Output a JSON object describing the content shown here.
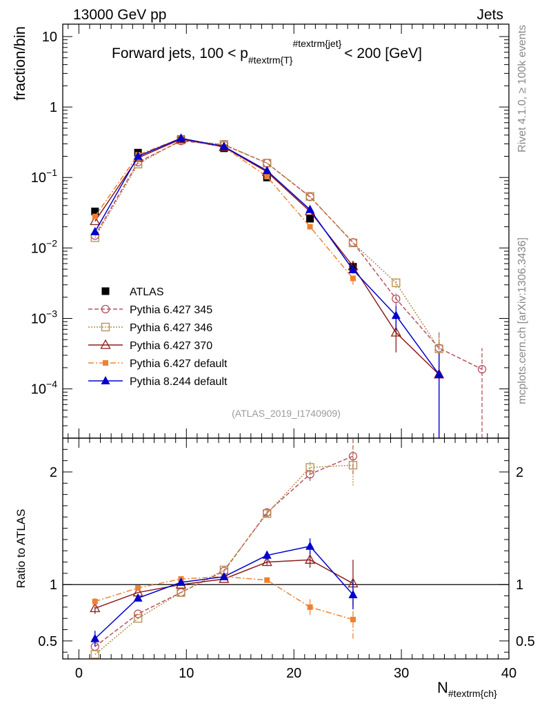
{
  "header": {
    "energy": "13000 GeV pp",
    "topic": "Jets"
  },
  "labels": {
    "main_ylabel": "fraction/bin",
    "ratio_ylabel": "Ratio to ATLAS",
    "xlabel": "N",
    "xlabel_sub": "#textrm{ch}",
    "title_pre": "Forward jets, 100 < p",
    "title_sub": "#textrm{T}",
    "title_sup": "#textrm{jet}",
    "title_post": "< 200 [GeV]",
    "side_rivet": "Rivet 4.1.0, ≥ 100k events",
    "side_mcplots": "mcplots.cern.ch [arXiv:1306.3436]",
    "watermark": "(ATLAS_2019_I1740909)"
  },
  "chart_data": {
    "type": "line",
    "xlim": [
      -1.5,
      40
    ],
    "main": {
      "yscale": "log",
      "ylim": [
        2e-05,
        15
      ],
      "yticks": [
        {
          "v": 10,
          "base": "10",
          "exp": ""
        },
        {
          "v": 1,
          "base": "1",
          "exp": ""
        },
        {
          "v": 0.1,
          "base": "10",
          "exp": "−1"
        },
        {
          "v": 0.01,
          "base": "10",
          "exp": "−2"
        },
        {
          "v": 0.001,
          "base": "10",
          "exp": "−3"
        },
        {
          "v": 0.0001,
          "base": "10",
          "exp": "−4"
        }
      ]
    },
    "ratio": {
      "yscale": "linear",
      "ylim": [
        0.34,
        2.3
      ],
      "yticks": [
        0.5,
        1,
        2
      ],
      "reference_line": 1
    },
    "xticks": [
      0,
      10,
      20,
      30,
      40
    ],
    "legend_position": "left-lower",
    "series": [
      {
        "name": "ATLAS",
        "color": "#000000",
        "marker": "square-filled",
        "dash": "",
        "points": [
          [
            1.5,
            0.033
          ],
          [
            5.5,
            0.225
          ],
          [
            9.5,
            0.35
          ],
          [
            13.5,
            0.26
          ],
          [
            17.5,
            0.1
          ],
          [
            21.5,
            0.026
          ],
          [
            25.5,
            0.0054
          ]
        ],
        "yerr": [
          0,
          0,
          0,
          0,
          0,
          0,
          0.0005
        ],
        "ratio": [],
        "rerr": []
      },
      {
        "name": "Pythia 6.427 345",
        "color": "#b5505e",
        "marker": "circle-open",
        "dash": "6,3",
        "points": [
          [
            1.5,
            0.015
          ],
          [
            5.5,
            0.165
          ],
          [
            9.5,
            0.33
          ],
          [
            13.5,
            0.29
          ],
          [
            17.5,
            0.16
          ],
          [
            21.5,
            0.053
          ],
          [
            25.5,
            0.012
          ],
          [
            29.5,
            0.0019
          ],
          [
            33.5,
            0.00038
          ],
          [
            37.5,
            0.00019
          ]
        ],
        "yerr": [
          0,
          0,
          0,
          0,
          0,
          0,
          0,
          0.0004,
          0.00025,
          0.00019
        ],
        "ratio": [
          [
            1.5,
            0.45
          ],
          [
            5.5,
            0.74
          ],
          [
            9.5,
            0.93
          ],
          [
            13.5,
            1.12
          ],
          [
            17.5,
            1.64
          ],
          [
            21.5,
            1.98
          ],
          [
            25.5,
            2.14
          ]
        ],
        "rerr": [
          0,
          0,
          0,
          0,
          0.03,
          0.06,
          0.16
        ]
      },
      {
        "name": "Pythia 6.427 346",
        "color": "#b8894a",
        "marker": "square-open",
        "dash": "2,2",
        "points": [
          [
            1.5,
            0.014
          ],
          [
            5.5,
            0.155
          ],
          [
            9.5,
            0.34
          ],
          [
            13.5,
            0.295
          ],
          [
            17.5,
            0.16
          ],
          [
            21.5,
            0.054
          ],
          [
            25.5,
            0.0118
          ],
          [
            29.5,
            0.0032
          ],
          [
            33.5,
            0.00037
          ]
        ],
        "yerr": [
          0,
          0,
          0,
          0,
          0,
          0,
          0,
          0.0005,
          0.0003
        ],
        "ratio": [
          [
            1.5,
            0.38
          ],
          [
            5.5,
            0.7
          ],
          [
            9.5,
            0.93
          ],
          [
            13.5,
            1.13
          ],
          [
            17.5,
            1.63
          ],
          [
            21.5,
            2.04
          ],
          [
            25.5,
            2.06
          ]
        ],
        "rerr": [
          0,
          0,
          0,
          0,
          0.03,
          0.06,
          0.18
        ]
      },
      {
        "name": "Pythia 6.427 370",
        "color": "#8b1a1a",
        "marker": "triangle-open",
        "dash": "",
        "points": [
          [
            1.5,
            0.024
          ],
          [
            5.5,
            0.19
          ],
          [
            9.5,
            0.35
          ],
          [
            13.5,
            0.27
          ],
          [
            17.5,
            0.12
          ],
          [
            21.5,
            0.033
          ],
          [
            25.5,
            0.0055
          ],
          [
            29.5,
            0.00063
          ],
          [
            33.5,
            0.00016
          ]
        ],
        "yerr": [
          0,
          0,
          0,
          0,
          0,
          0,
          0,
          0.0003,
          0.00016
        ],
        "ratio": [
          [
            1.5,
            0.79
          ],
          [
            5.5,
            0.93
          ],
          [
            9.5,
            1.0
          ],
          [
            13.5,
            1.05
          ],
          [
            17.5,
            1.2
          ],
          [
            21.5,
            1.22
          ],
          [
            25.5,
            1.01
          ]
        ],
        "rerr": [
          0.05,
          0,
          0,
          0,
          0.03,
          0.07,
          0.21
        ]
      },
      {
        "name": "Pythia 6.427 default",
        "color": "#f08030",
        "marker": "square-filled-small",
        "dash": "8,3,2,3",
        "points": [
          [
            1.5,
            0.028
          ],
          [
            5.5,
            0.21
          ],
          [
            9.5,
            0.36
          ],
          [
            13.5,
            0.27
          ],
          [
            17.5,
            0.103
          ],
          [
            21.5,
            0.02
          ],
          [
            25.5,
            0.0037
          ]
        ],
        "yerr": [
          0,
          0,
          0,
          0,
          0,
          0,
          0.0007
        ],
        "ratio": [
          [
            1.5,
            0.85
          ],
          [
            5.5,
            0.97
          ],
          [
            9.5,
            1.05
          ],
          [
            13.5,
            1.07
          ],
          [
            17.5,
            1.04
          ],
          [
            21.5,
            0.8
          ],
          [
            25.5,
            0.69
          ]
        ],
        "rerr": [
          0.05,
          0,
          0,
          0,
          0,
          0.07,
          0.17
        ]
      },
      {
        "name": "Pythia 8.244 default",
        "color": "#0000cc",
        "marker": "triangle-filled",
        "dash": "",
        "points": [
          [
            1.5,
            0.017
          ],
          [
            5.5,
            0.2
          ],
          [
            9.5,
            0.36
          ],
          [
            13.5,
            0.275
          ],
          [
            17.5,
            0.125
          ],
          [
            21.5,
            0.035
          ],
          [
            25.5,
            0.0049
          ],
          [
            29.5,
            0.0011
          ],
          [
            33.5,
            0.00016
          ]
        ],
        "yerr": [
          0,
          0,
          0,
          0,
          0,
          0,
          0.0004,
          0.0004,
          0.00016
        ],
        "ratio": [
          [
            1.5,
            0.52
          ],
          [
            5.5,
            0.88
          ],
          [
            9.5,
            1.02
          ],
          [
            13.5,
            1.07
          ],
          [
            17.5,
            1.26
          ],
          [
            21.5,
            1.34
          ],
          [
            25.5,
            0.91
          ]
        ],
        "rerr": [
          0.07,
          0,
          0,
          0,
          0.04,
          0.07,
          0.13
        ]
      }
    ]
  }
}
